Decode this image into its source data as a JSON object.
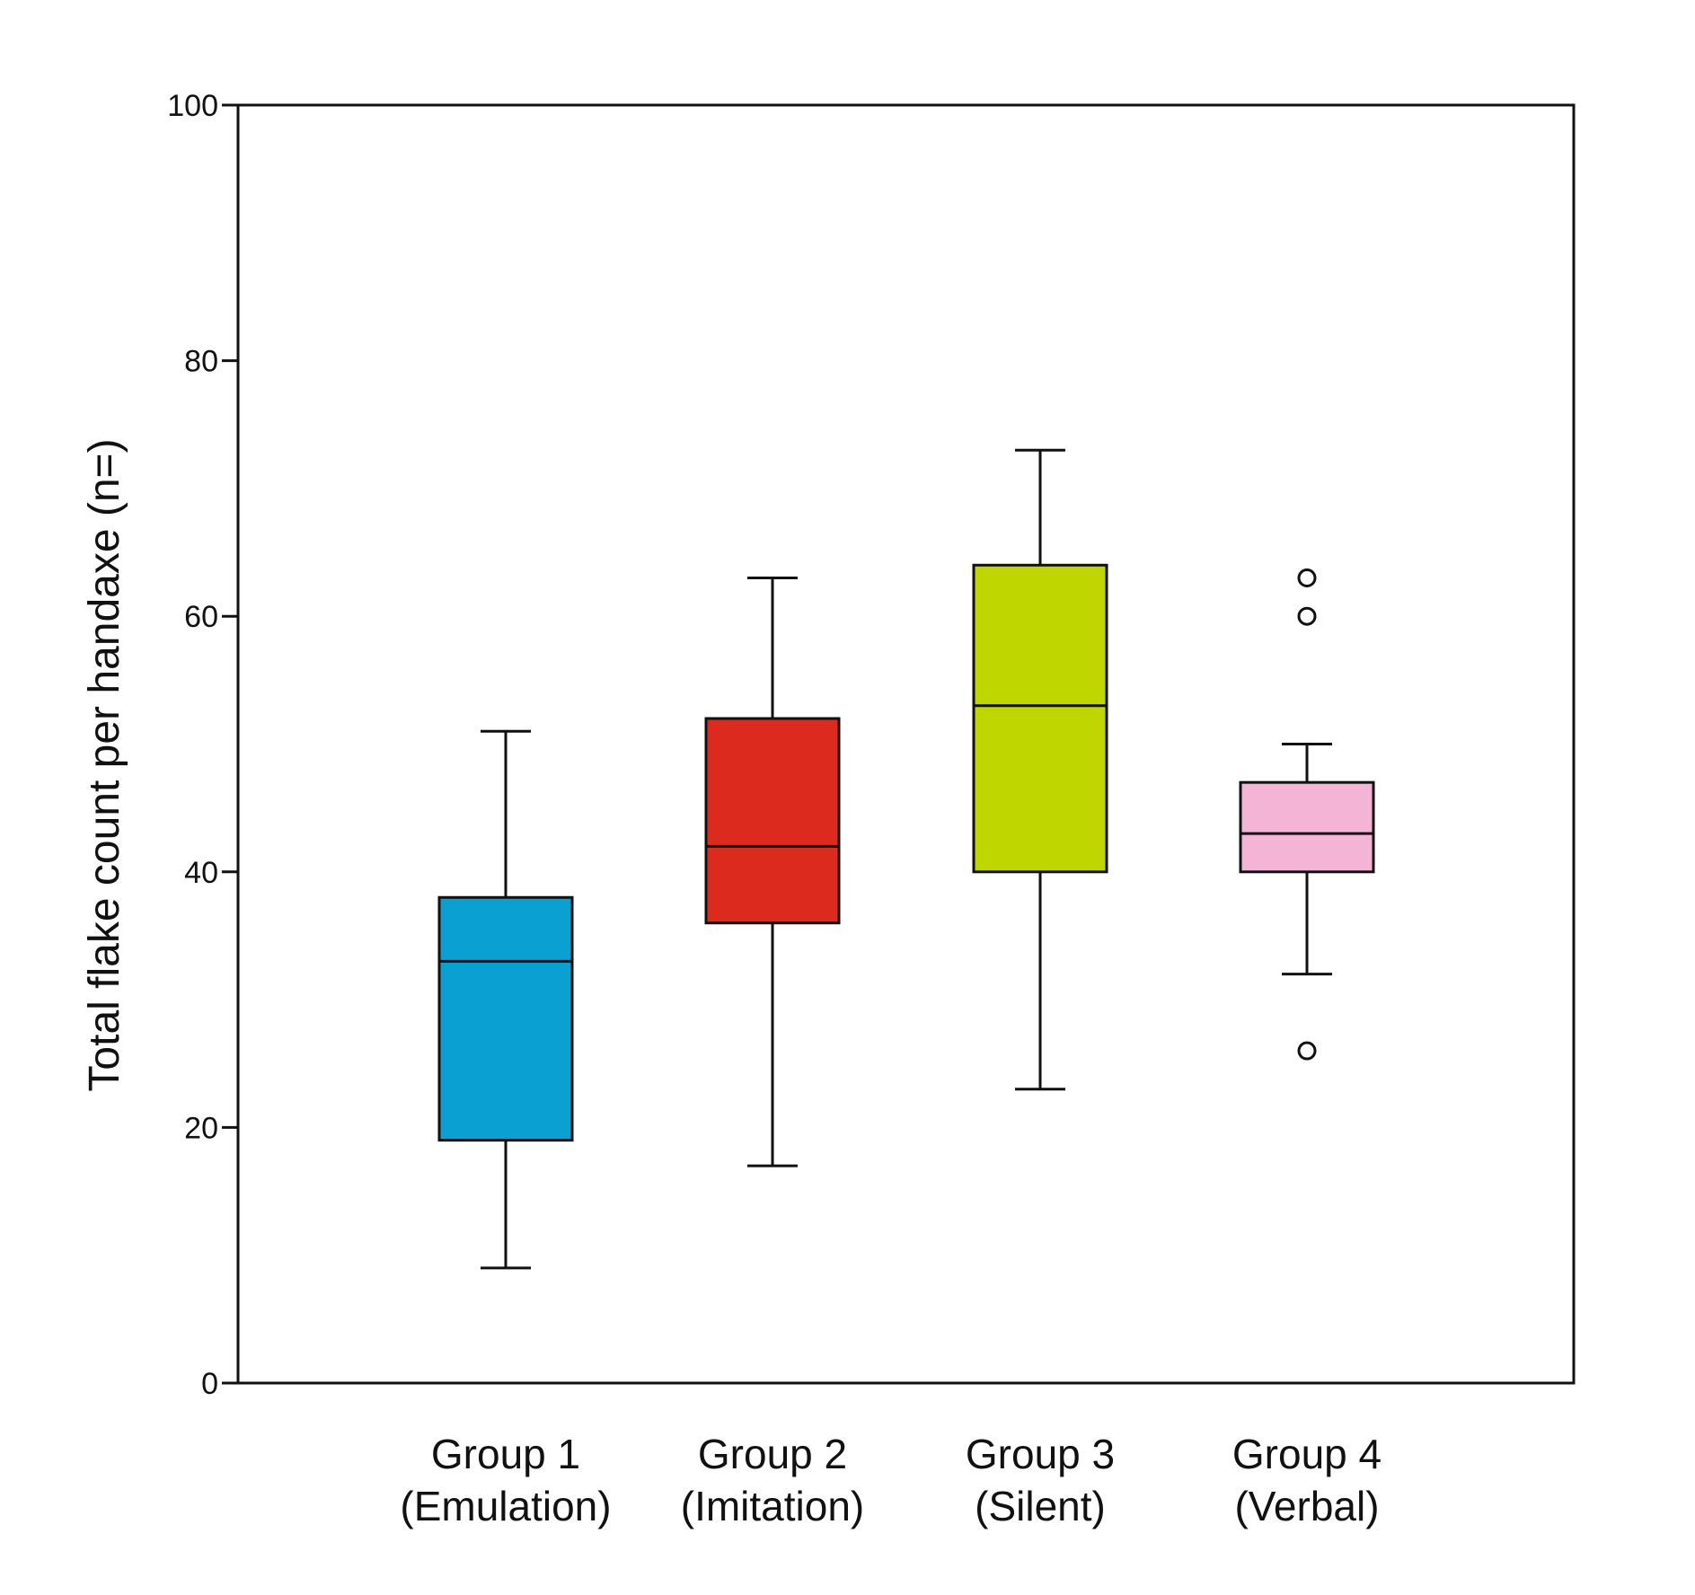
{
  "chart_data": {
    "type": "boxplot",
    "ylabel": "Total flake count per handaxe (n=)",
    "xlabel": "",
    "ylim": [
      0,
      100
    ],
    "yticks": [
      0,
      20,
      40,
      60,
      80,
      100
    ],
    "grid": false,
    "legend": "none",
    "groups": [
      {
        "name": "Group 1",
        "sub": "(Emulation)",
        "color": "#0aa0d2",
        "whisker_low": 9,
        "q1": 19,
        "median": 33,
        "q3": 38,
        "whisker_high": 51,
        "outliers": []
      },
      {
        "name": "Group 2",
        "sub": "(Imitation)",
        "color": "#dc2a1e",
        "whisker_low": 17,
        "q1": 36,
        "median": 42,
        "q3": 52,
        "whisker_high": 63,
        "outliers": []
      },
      {
        "name": "Group 3",
        "sub": "(Silent)",
        "color": "#c0d600",
        "whisker_low": 23,
        "q1": 40,
        "median": 53,
        "q3": 64,
        "whisker_high": 73,
        "outliers": []
      },
      {
        "name": "Group 4",
        "sub": "(Verbal)",
        "color": "#f4b4d6",
        "whisker_low": 32,
        "q1": 40,
        "median": 43,
        "q3": 47,
        "whisker_high": 50,
        "outliers": [
          26,
          60,
          63
        ]
      }
    ]
  }
}
